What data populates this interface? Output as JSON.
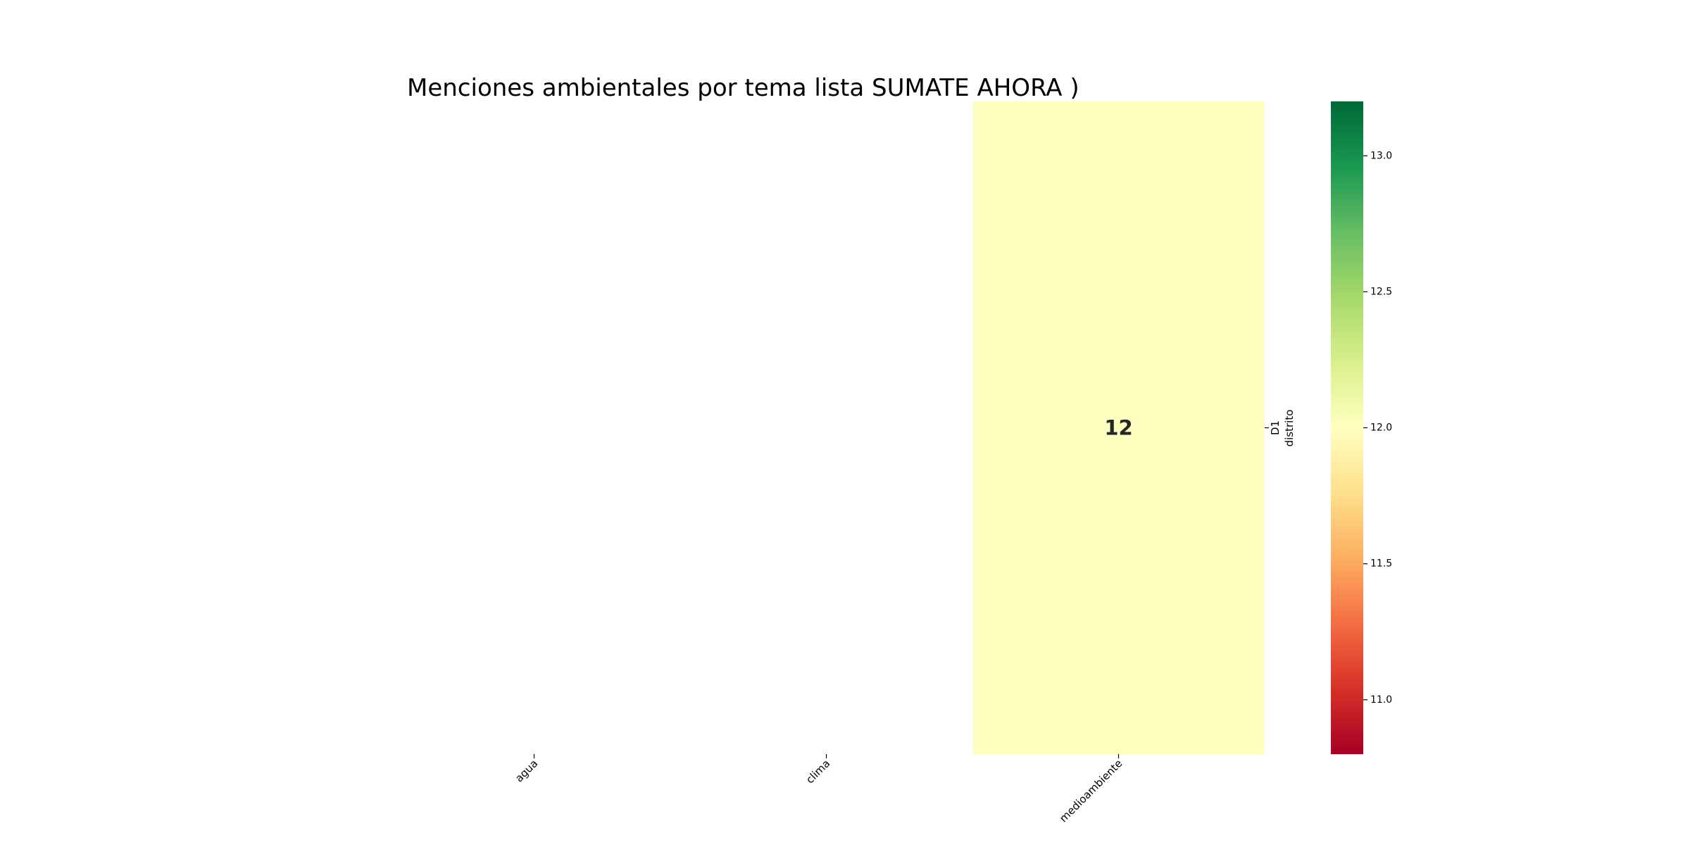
{
  "chart_data": {
    "type": "heatmap",
    "title": "Menciones ambientales por tema lista SUMATE AHORA )",
    "x_categories": [
      "agua",
      "clima",
      "medioambiente"
    ],
    "y_categories": [
      "D1"
    ],
    "ylabel": "distrito",
    "xlabel": "",
    "values": [
      [
        null,
        null,
        12
      ]
    ],
    "annotations": [
      [
        null,
        null,
        "12"
      ]
    ],
    "colormap": "RdYlGn",
    "colorbar": {
      "min": 10.8,
      "max": 13.2,
      "ticks": [
        11.0,
        11.5,
        12.0,
        12.5,
        13.0
      ],
      "tick_labels": [
        "11.0",
        "11.5",
        "12.0",
        "12.5",
        "13.0"
      ]
    },
    "y_axis_side": "right",
    "x_tick_rotation": 45,
    "grid": false
  }
}
